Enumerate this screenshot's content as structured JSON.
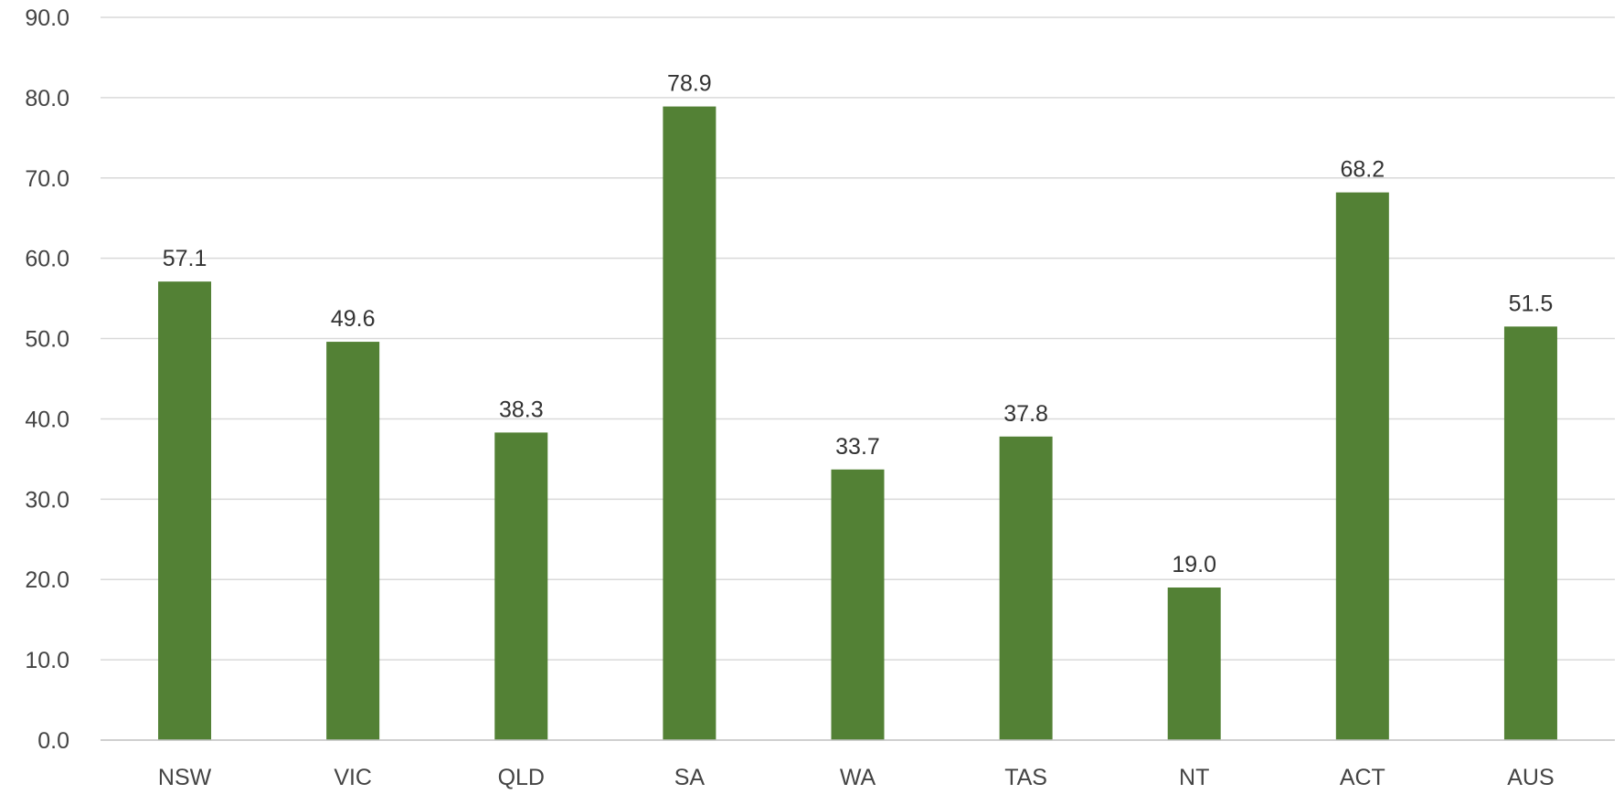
{
  "chart_data": {
    "type": "bar",
    "categories": [
      "NSW",
      "VIC",
      "QLD",
      "SA",
      "WA",
      "TAS",
      "NT",
      "ACT",
      "AUS"
    ],
    "values": [
      57.1,
      49.6,
      38.3,
      78.9,
      33.7,
      37.8,
      19.0,
      68.2,
      51.5
    ],
    "value_labels": [
      "57.1",
      "49.6",
      "38.3",
      "78.9",
      "33.7",
      "37.8",
      "19.0",
      "68.2",
      "51.5"
    ],
    "y_ticks": [
      "0.0",
      "10.0",
      "20.0",
      "30.0",
      "40.0",
      "50.0",
      "60.0",
      "70.0",
      "80.0",
      "90.0"
    ],
    "ylim": [
      0,
      90
    ],
    "grid": true,
    "legend": "none",
    "bar_color": "#538135"
  }
}
